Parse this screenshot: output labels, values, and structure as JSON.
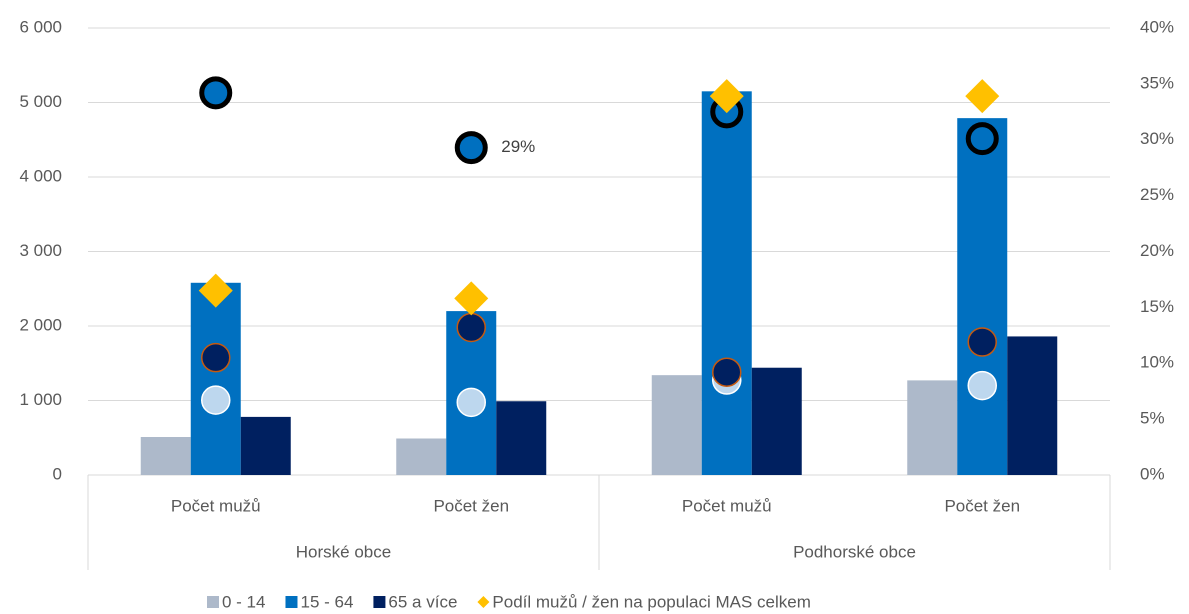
{
  "chart_data": {
    "type": "bar",
    "categories": [
      "Počet mužů",
      "Počet žen",
      "Počet mužů",
      "Počet žen"
    ],
    "groups": [
      {
        "label": "Horské obce",
        "size": 2
      },
      {
        "label": "Podhorské obce",
        "size": 2
      }
    ],
    "ylim": [
      0,
      6000
    ],
    "yticks": [
      0,
      {
        "value": 1000,
        "label": "1 000"
      },
      {
        "value": 2000,
        "label": "2 000"
      },
      {
        "value": 3000,
        "label": "3 000"
      },
      {
        "value": 4000,
        "label": "4 000"
      },
      {
        "value": 5000,
        "label": "5 000"
      },
      {
        "value": 6000,
        "label": "6 000"
      }
    ],
    "y2lim": [
      0,
      40
    ],
    "y2ticks": [
      {
        "value": 0,
        "label": "0%"
      },
      {
        "value": 5,
        "label": "5%"
      },
      {
        "value": 10,
        "label": "10%"
      },
      {
        "value": 15,
        "label": "15%"
      },
      {
        "value": 20,
        "label": "20%"
      },
      {
        "value": 25,
        "label": "25%"
      },
      {
        "value": 30,
        "label": "30%"
      },
      {
        "value": 35,
        "label": "35%"
      },
      {
        "value": 40,
        "label": "40%"
      }
    ],
    "grid": true,
    "legend": "bottom",
    "series": [
      {
        "name": "0 - 14",
        "color": "#adb9ca",
        "marker": "bar",
        "values": [
          510,
          490,
          1340,
          1270
        ]
      },
      {
        "name": "15 - 64",
        "color": "#0070c0",
        "marker": "bar",
        "values": [
          2580,
          2200,
          5150,
          4790
        ]
      },
      {
        "name": "65 a více",
        "color": "#002060",
        "marker": "bar",
        "values": [
          780,
          990,
          1440,
          1860
        ]
      },
      {
        "name": "Podíl mužů / žen na populaci MAS celkem",
        "color": "#ffc000",
        "marker": "diamond",
        "axis": "y2",
        "values": [
          16.5,
          15.8,
          33.9,
          33.9
        ]
      },
      {
        "color": "#bdd7ee",
        "stroke": "#ffffff",
        "marker": "circle",
        "axis": "y2",
        "values": [
          6.7,
          6.5,
          8.5,
          8.0
        ]
      },
      {
        "color": "#002060",
        "stroke": "#c55a11",
        "marker": "circle",
        "axis": "y2",
        "values": [
          10.5,
          13.2,
          9.2,
          11.9
        ]
      },
      {
        "color": "#0070c0",
        "stroke": "#000000",
        "marker": "circle",
        "axis": "y2",
        "values": [
          34.2,
          29.3,
          32.5,
          30.1
        ],
        "value_labels": [
          null,
          "29%",
          null,
          null
        ]
      }
    ]
  }
}
